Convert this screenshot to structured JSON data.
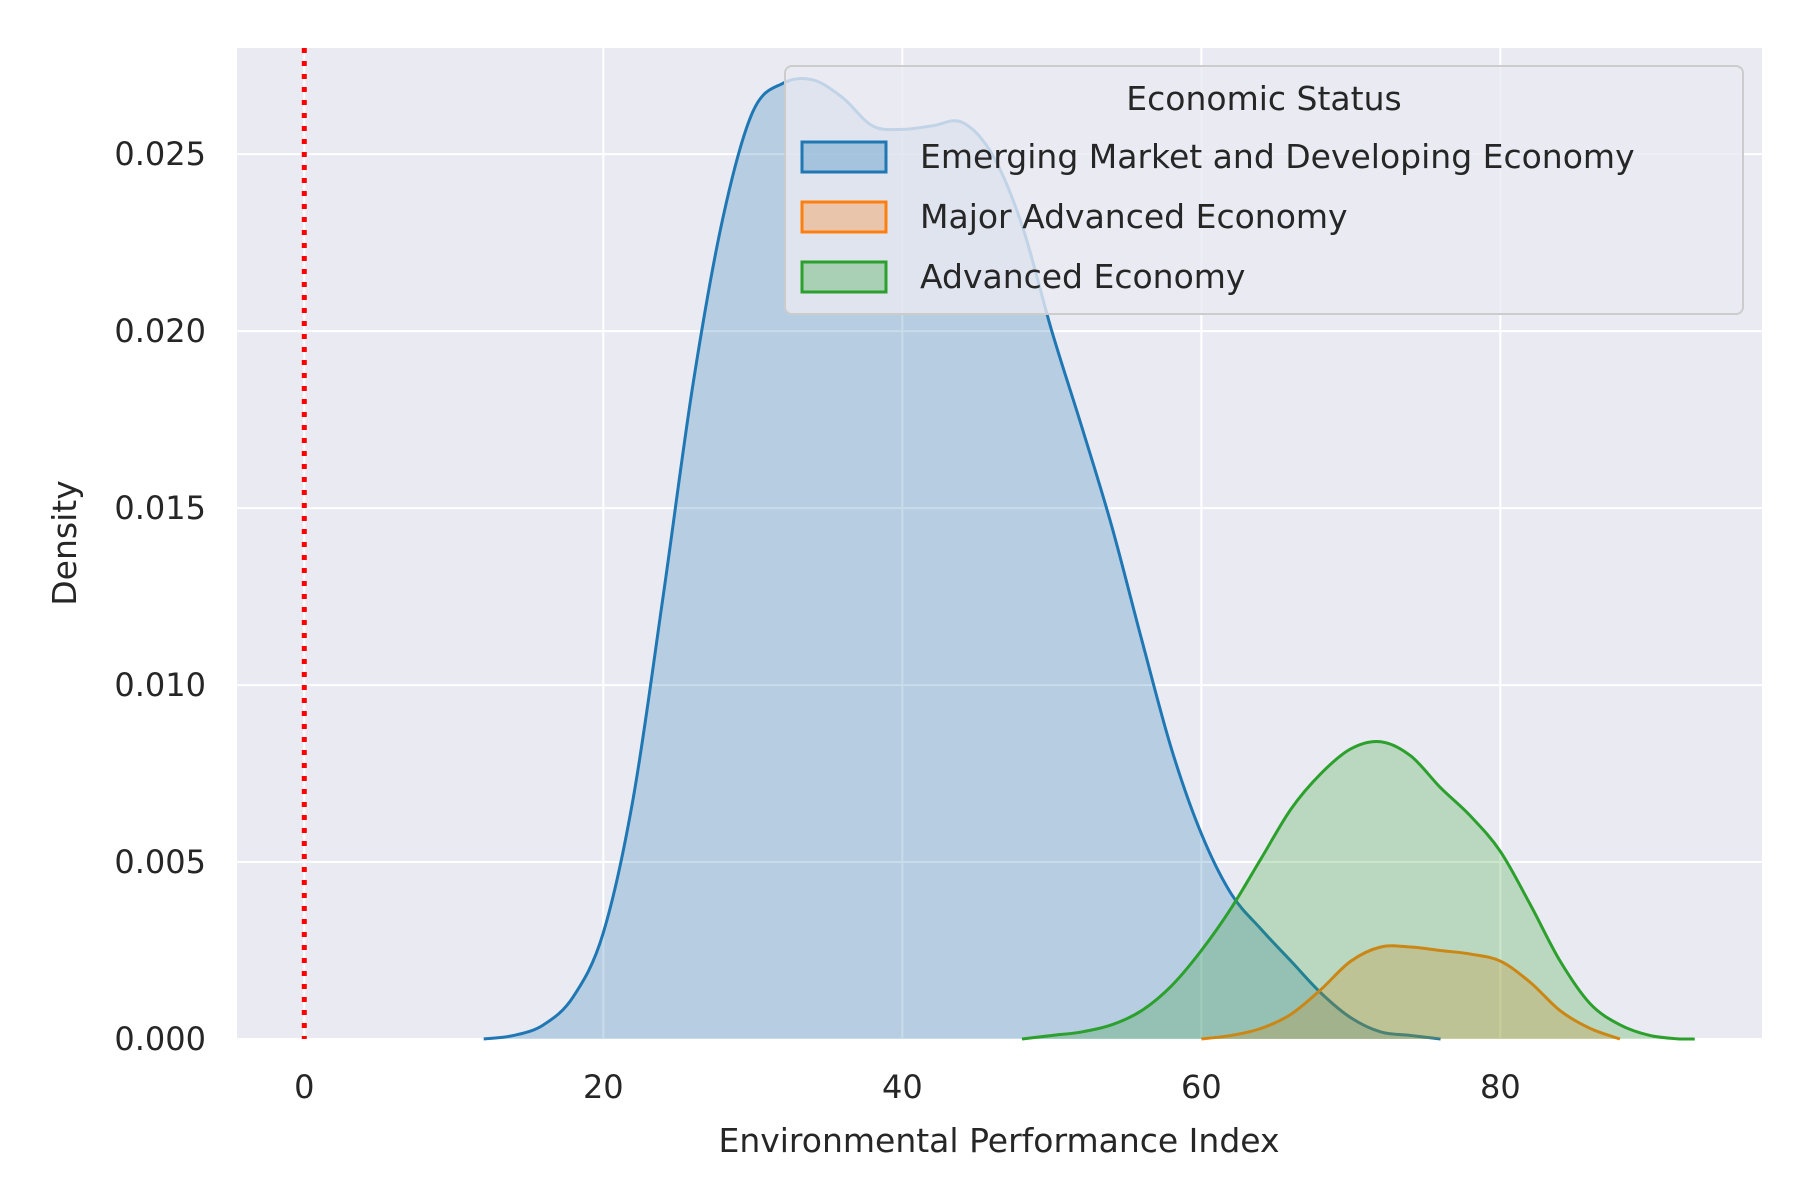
{
  "chart_data": {
    "type": "area",
    "title": "",
    "xlabel": "Environmental Performance Index",
    "ylabel": "Density",
    "xlim": [
      -4.5,
      97.5
    ],
    "ylim": [
      0,
      0.028
    ],
    "xticks": [
      0,
      20,
      40,
      60,
      80
    ],
    "yticks": [
      0,
      0.005,
      0.01,
      0.015,
      0.02,
      0.025
    ],
    "grid": true,
    "legend": {
      "title": "Economic Status",
      "placement": "top-right"
    },
    "reference_line": {
      "x": 0,
      "style": "dotted",
      "color": "#ff0000"
    },
    "series": [
      {
        "name": "Emerging Market and Developing Economy",
        "color": "#1f77b4",
        "x": [
          12,
          14,
          16,
          18,
          20,
          22,
          24,
          26,
          28,
          30,
          32,
          34,
          36,
          38,
          40,
          42,
          44,
          46,
          48,
          50,
          52,
          54,
          56,
          58,
          60,
          62,
          64,
          66,
          68,
          70,
          72,
          74,
          76
        ],
        "y": [
          0.0,
          0.0001,
          0.0004,
          0.0012,
          0.003,
          0.0068,
          0.0125,
          0.0185,
          0.0232,
          0.0262,
          0.027,
          0.0271,
          0.0266,
          0.0258,
          0.0257,
          0.0258,
          0.0259,
          0.025,
          0.023,
          0.02,
          0.0173,
          0.0145,
          0.0113,
          0.0082,
          0.0058,
          0.0041,
          0.0031,
          0.0022,
          0.0013,
          0.0006,
          0.0002,
          0.0001,
          0.0
        ]
      },
      {
        "name": "Major Advanced Economy",
        "color": "#ff7f0e",
        "x": [
          60,
          62,
          64,
          66,
          68,
          70,
          72,
          74,
          76,
          78,
          80,
          82,
          84,
          86,
          88
        ],
        "y": [
          0.0,
          0.0001,
          0.0003,
          0.0007,
          0.0014,
          0.0022,
          0.0026,
          0.0026,
          0.0025,
          0.0024,
          0.0022,
          0.0016,
          0.0008,
          0.0003,
          0.0
        ]
      },
      {
        "name": "Advanced Economy",
        "color": "#2ca02c",
        "x": [
          48,
          50,
          52,
          54,
          56,
          58,
          60,
          62,
          64,
          66,
          68,
          70,
          72,
          74,
          76,
          78,
          80,
          82,
          84,
          86,
          88,
          90,
          92,
          93
        ],
        "y": [
          0.0,
          0.0001,
          0.0002,
          0.0004,
          0.0008,
          0.0015,
          0.0025,
          0.0037,
          0.0051,
          0.0065,
          0.0075,
          0.0082,
          0.0084,
          0.008,
          0.0071,
          0.0063,
          0.0053,
          0.0038,
          0.0022,
          0.001,
          0.0004,
          0.0001,
          0.0,
          0.0
        ]
      }
    ]
  }
}
